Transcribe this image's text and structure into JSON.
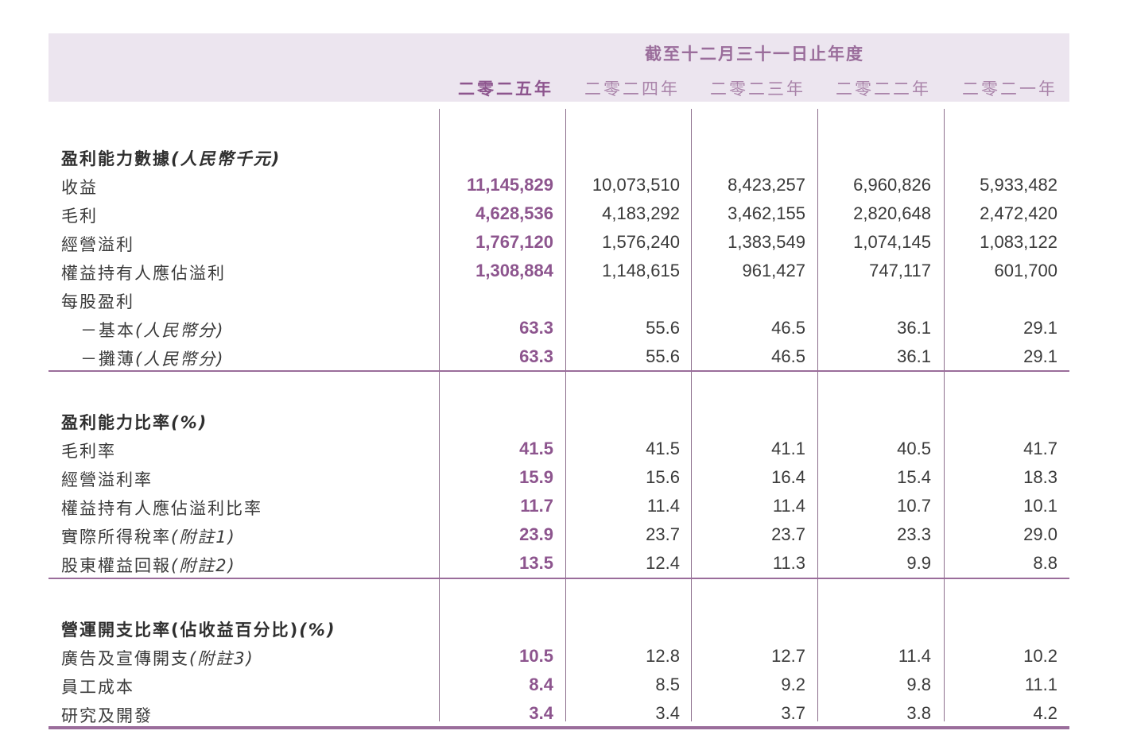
{
  "header": {
    "title": "截至十二月三十一日止年度",
    "years": [
      "二零二五年",
      "二零二四年",
      "二零二三年",
      "二零二二年",
      "二零二一年"
    ]
  },
  "colors": {
    "accent": "#8d558e",
    "header_band": "#ece5ef",
    "rule": "#9a6d9b"
  },
  "sections": [
    {
      "heading": "盈利能力數據",
      "heading_unit": "(人民幣千元)",
      "rows": [
        {
          "label": "收益",
          "note": "",
          "values": [
            "11,145,829",
            "10,073,510",
            "8,423,257",
            "6,960,826",
            "5,933,482"
          ]
        },
        {
          "label": "毛利",
          "note": "",
          "values": [
            "4,628,536",
            "4,183,292",
            "3,462,155",
            "2,820,648",
            "2,472,420"
          ]
        },
        {
          "label": "經營溢利",
          "note": "",
          "values": [
            "1,767,120",
            "1,576,240",
            "1,383,549",
            "1,074,145",
            "1,083,122"
          ]
        },
        {
          "label": "權益持有人應佔溢利",
          "note": "",
          "values": [
            "1,308,884",
            "1,148,615",
            "961,427",
            "747,117",
            "601,700"
          ]
        },
        {
          "label": "每股盈利",
          "note": "",
          "values": [
            "",
            "",
            "",
            "",
            ""
          ]
        },
        {
          "label": "－基本",
          "note": "(人民幣分)",
          "sub": true,
          "values": [
            "63.3",
            "55.6",
            "46.5",
            "36.1",
            "29.1"
          ]
        },
        {
          "label": "－攤薄",
          "note": "(人民幣分)",
          "sub": true,
          "values": [
            "63.3",
            "55.6",
            "46.5",
            "36.1",
            "29.1"
          ]
        }
      ]
    },
    {
      "heading": "盈利能力比率",
      "heading_unit": "(%)",
      "rows": [
        {
          "label": "毛利率",
          "note": "",
          "values": [
            "41.5",
            "41.5",
            "41.1",
            "40.5",
            "41.7"
          ]
        },
        {
          "label": "經營溢利率",
          "note": "",
          "values": [
            "15.9",
            "15.6",
            "16.4",
            "15.4",
            "18.3"
          ]
        },
        {
          "label": "權益持有人應佔溢利比率",
          "note": "",
          "values": [
            "11.7",
            "11.4",
            "11.4",
            "10.7",
            "10.1"
          ]
        },
        {
          "label": "實際所得稅率",
          "note": "(附註1)",
          "values": [
            "23.9",
            "23.7",
            "23.7",
            "23.3",
            "29.0"
          ]
        },
        {
          "label": "股東權益回報",
          "note": "(附註2)",
          "values": [
            "13.5",
            "12.4",
            "11.3",
            "9.9",
            "8.8"
          ]
        }
      ]
    },
    {
      "heading": "營運開支比率(佔收益百分比)",
      "heading_unit": "(%)",
      "rows": [
        {
          "label": "廣告及宣傳開支",
          "note": "(附註3)",
          "values": [
            "10.5",
            "12.8",
            "12.7",
            "11.4",
            "10.2"
          ]
        },
        {
          "label": "員工成本",
          "note": "",
          "values": [
            "8.4",
            "8.5",
            "9.2",
            "9.8",
            "11.1"
          ]
        },
        {
          "label": "研究及開發",
          "note": "",
          "values": [
            "3.4",
            "3.4",
            "3.7",
            "3.8",
            "4.2"
          ]
        }
      ]
    }
  ]
}
